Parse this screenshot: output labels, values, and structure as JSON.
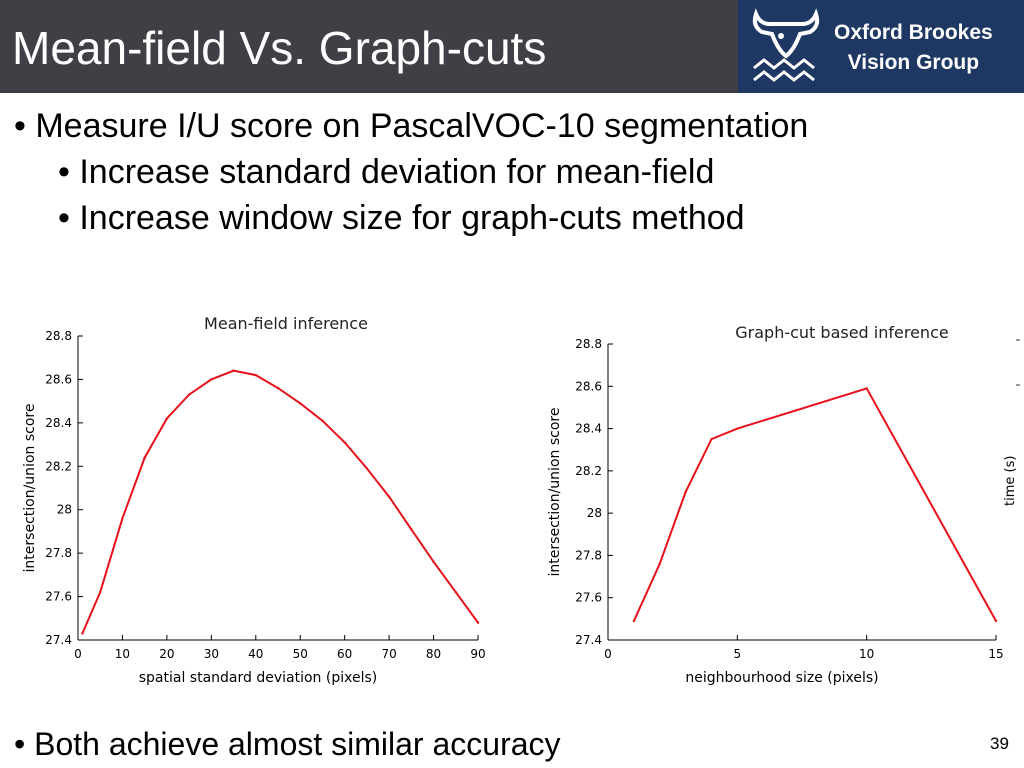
{
  "slide": {
    "title": "Mean-field Vs. Graph-cuts",
    "logo": {
      "line1": "Oxford Brookes",
      "line2": "Vision Group"
    },
    "bullets": [
      "• Measure I/U score on PascalVOC-10 segmentation",
      "• Increase standard deviation for mean-field",
      "• Increase window size for graph-cuts method"
    ],
    "footer_bullet": "• Both achieve almost similar accuracy",
    "page_number": "39",
    "edge_label": "time (s)"
  },
  "colors": {
    "title_bar": "#3f3f45",
    "logo_bg": "#1f3863",
    "series": "#e8101a",
    "axis": "#000000"
  },
  "chart_data": [
    {
      "type": "line",
      "title": "Mean-field inference",
      "xlabel": "spatial standard deviation (pixels)",
      "ylabel": "intersection/union score",
      "xlim": [
        0,
        90
      ],
      "ylim": [
        27.4,
        28.8
      ],
      "xticks": [
        0,
        10,
        20,
        30,
        40,
        50,
        60,
        70,
        80,
        90
      ],
      "yticks": [
        27.4,
        27.6,
        27.8,
        28,
        28.2,
        28.4,
        28.6,
        28.8
      ],
      "ytick_labels": [
        "27.4",
        "27.6",
        "27.8",
        "28",
        "28.2",
        "28.4",
        "28.6",
        "28.8"
      ],
      "series": [
        {
          "x": [
            1,
            5,
            10,
            15,
            20,
            25,
            30,
            35,
            40,
            45,
            50,
            55,
            60,
            65,
            70,
            75,
            80,
            85,
            90
          ],
          "y": [
            27.43,
            27.62,
            27.96,
            28.24,
            28.42,
            28.53,
            28.6,
            28.64,
            28.62,
            28.56,
            28.49,
            28.41,
            28.31,
            28.19,
            28.06,
            27.91,
            27.76,
            27.62,
            27.48
          ]
        }
      ]
    },
    {
      "type": "line",
      "title": "Graph-cut based inference",
      "xlabel": "neighbourhood size (pixels)",
      "ylabel": "intersection/union score",
      "xlim": [
        0,
        15
      ],
      "ylim": [
        27.4,
        28.8
      ],
      "xticks": [
        0,
        5,
        10,
        15
      ],
      "yticks": [
        27.4,
        27.6,
        27.8,
        28,
        28.2,
        28.4,
        28.6,
        28.8
      ],
      "ytick_labels": [
        "27.4",
        "27.6",
        "27.8",
        "28",
        "28.2",
        "28.4",
        "28.6",
        "28.8"
      ],
      "series": [
        {
          "x": [
            1,
            2,
            3,
            4,
            5,
            10,
            15
          ],
          "y": [
            27.49,
            27.76,
            28.1,
            28.35,
            28.4,
            28.59,
            27.49
          ]
        }
      ]
    }
  ]
}
